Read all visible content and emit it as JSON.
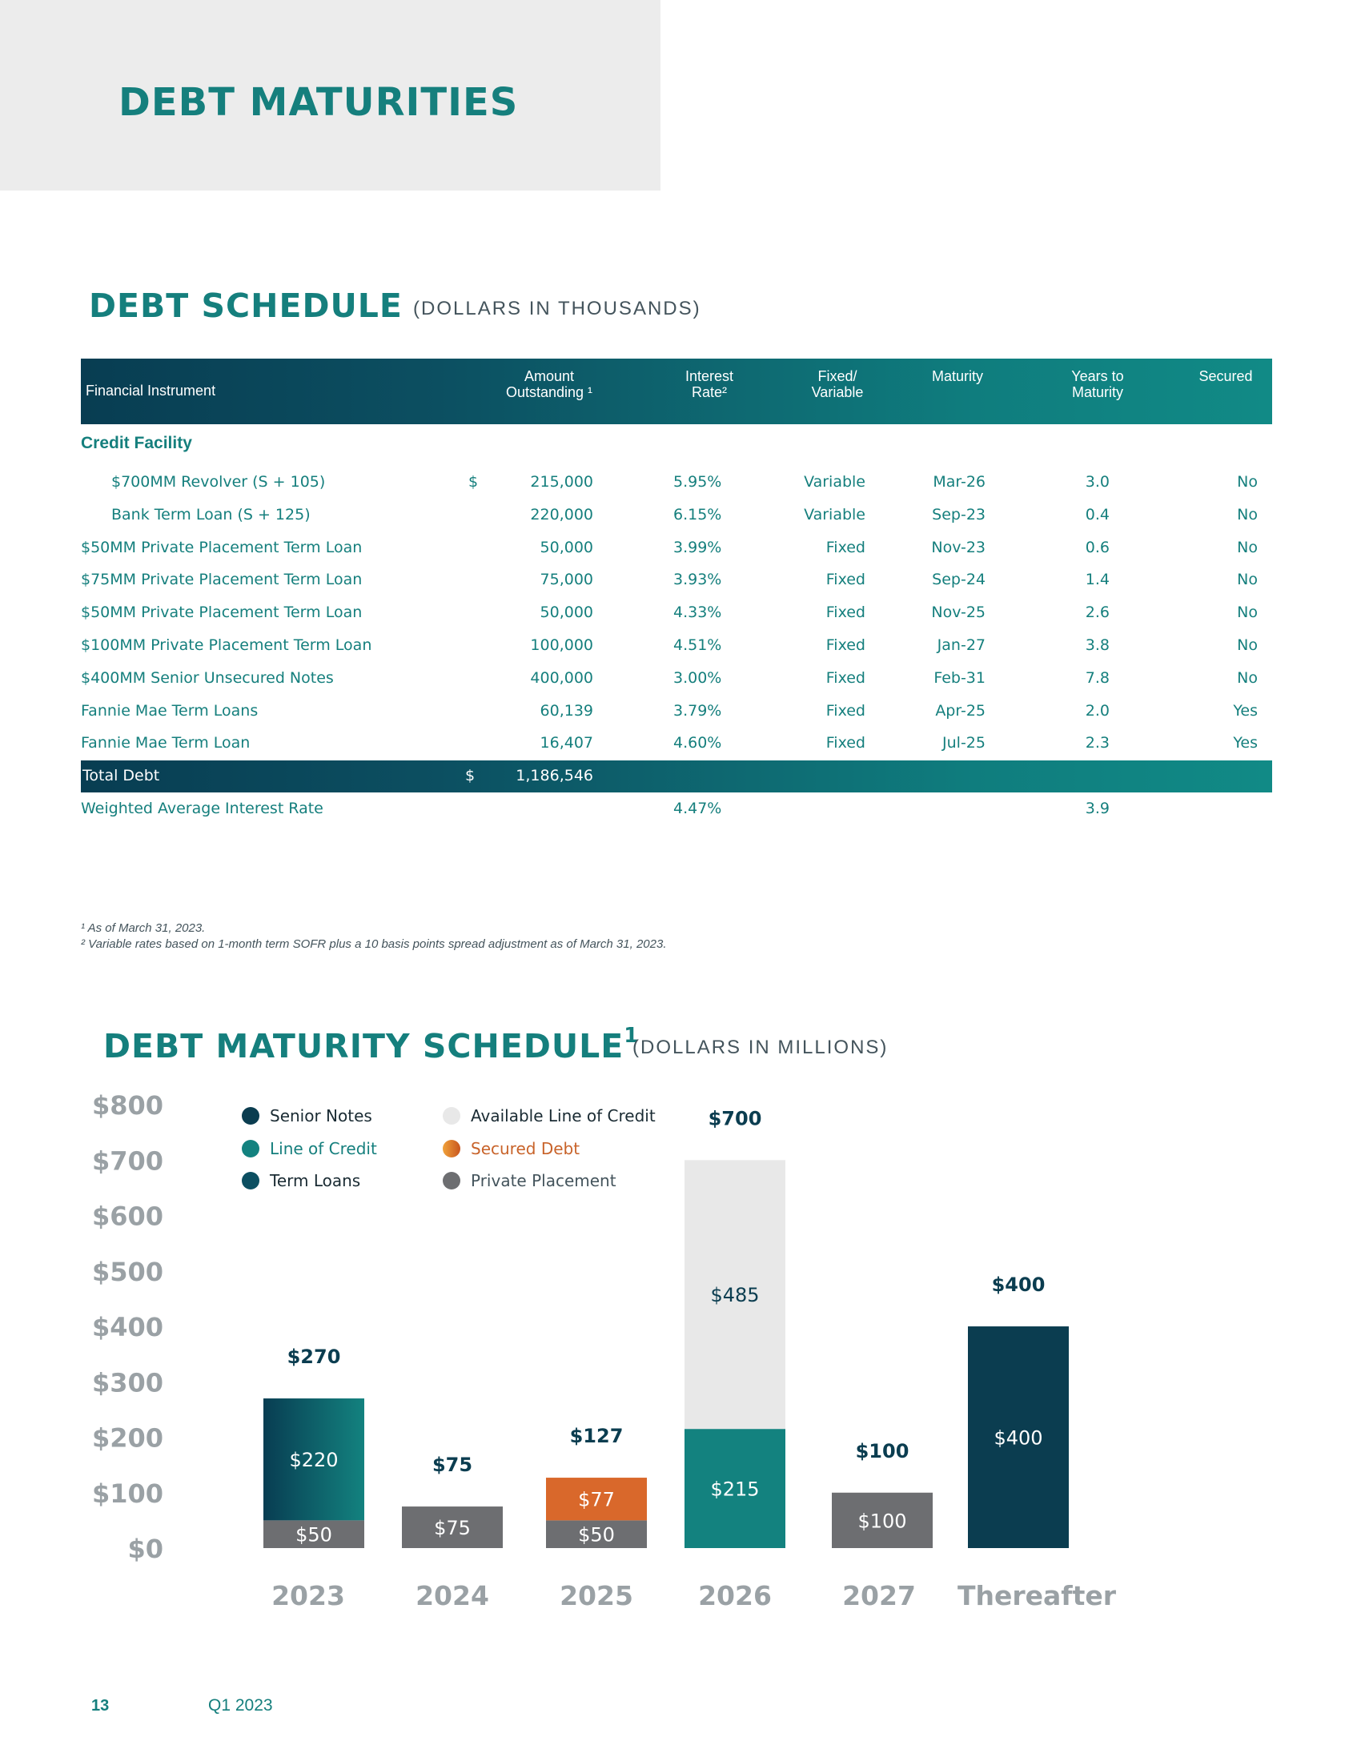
{
  "header": {
    "title": "DEBT MATURITIES"
  },
  "debt_schedule": {
    "title": "DEBT SCHEDULE",
    "subtitle": "(DOLLARS IN THOUSANDS)",
    "columns": {
      "instrument": "Financial Instrument",
      "amount_l1": "Amount",
      "amount_l2": "Outstanding ¹",
      "rate_l1": "Interest",
      "rate_l2": "Rate²",
      "fixed_l1": "Fixed/",
      "fixed_l2": "Variable",
      "maturity": "Maturity",
      "years_l1": "Years to",
      "years_l2": "Maturity",
      "secured": "Secured"
    },
    "category": "Credit Facility",
    "rows": [
      {
        "name": "$700MM Revolver (S + 105)",
        "dollar": "$",
        "amount": "215,000",
        "rate": "5.95%",
        "type": "Variable",
        "maturity": "Mar-26",
        "years": "3.0",
        "secured": "No"
      },
      {
        "name": "Bank Term Loan (S + 125)",
        "dollar": "",
        "amount": "220,000",
        "rate": "6.15%",
        "type": "Variable",
        "maturity": "Sep-23",
        "years": "0.4",
        "secured": "No"
      },
      {
        "name": "$50MM Private Placement Term Loan",
        "dollar": "",
        "amount": "50,000",
        "rate": "3.99%",
        "type": "Fixed",
        "maturity": "Nov-23",
        "years": "0.6",
        "secured": "No"
      },
      {
        "name": "$75MM Private Placement Term Loan",
        "dollar": "",
        "amount": "75,000",
        "rate": "3.93%",
        "type": "Fixed",
        "maturity": "Sep-24",
        "years": "1.4",
        "secured": "No"
      },
      {
        "name": "$50MM Private Placement Term Loan",
        "dollar": "",
        "amount": "50,000",
        "rate": "4.33%",
        "type": "Fixed",
        "maturity": "Nov-25",
        "years": "2.6",
        "secured": "No"
      },
      {
        "name": "$100MM Private Placement Term Loan",
        "dollar": "",
        "amount": "100,000",
        "rate": "4.51%",
        "type": "Fixed",
        "maturity": "Jan-27",
        "years": "3.8",
        "secured": "No"
      },
      {
        "name": "$400MM Senior Unsecured Notes",
        "dollar": "",
        "amount": "400,000",
        "rate": "3.00%",
        "type": "Fixed",
        "maturity": "Feb-31",
        "years": "7.8",
        "secured": "No"
      },
      {
        "name": "Fannie Mae Term Loans",
        "dollar": "",
        "amount": "60,139",
        "rate": "3.79%",
        "type": "Fixed",
        "maturity": "Apr-25",
        "years": "2.0",
        "secured": "Yes"
      },
      {
        "name": "Fannie Mae Term Loan",
        "dollar": "",
        "amount": "16,407",
        "rate": "4.60%",
        "type": "Fixed",
        "maturity": "Jul-25",
        "years": "2.3",
        "secured": "Yes"
      }
    ],
    "total": {
      "name": "Total Debt",
      "dollar": "$",
      "amount": "1,186,546"
    },
    "weighted": {
      "name": "Weighted Average Interest Rate",
      "rate": "4.47%",
      "years": "3.9"
    },
    "footnote1": "¹ As of March 31, 2023.",
    "footnote2": "² Variable rates based on 1-month term SOFR plus a 10 basis points spread adjustment as of March 31, 2023."
  },
  "maturity": {
    "title": "DEBT MATURITY SCHEDULE",
    "title_sup": "1",
    "subtitle": "(DOLLARS IN MILLIONS)"
  },
  "chart_data": {
    "type": "bar",
    "stacked": true,
    "categories": [
      "2023",
      "2024",
      "2025",
      "2026",
      "2027",
      "Thereafter"
    ],
    "y_ticks": [
      "$0",
      "$100",
      "$200",
      "$300",
      "$400",
      "$500",
      "$600",
      "$700",
      "$800"
    ],
    "ylim": [
      0,
      800
    ],
    "legend": [
      {
        "name": "Senior Notes",
        "color": "#0b3d50",
        "text_color": "#1a2b33"
      },
      {
        "name": "Line of Credit",
        "color": "#13827f",
        "text_color": "#157f7d"
      },
      {
        "name": "Term Loans",
        "color": "#0c4f61",
        "text_color": "#1a2b33"
      },
      {
        "name": "Available Line of Credit",
        "color": "#e8e8e8",
        "text_color": "#1a2b33"
      },
      {
        "name": "Secured Debt",
        "color": "#d9682b",
        "text_color": "#c8632a"
      },
      {
        "name": "Private Placement",
        "color": "#6d6e71",
        "text_color": "#44545c"
      }
    ],
    "bars": [
      {
        "category": "2023",
        "total": 270,
        "total_label": "$270",
        "segments": [
          {
            "series": "Private Placement",
            "value": 50,
            "label": "$50"
          },
          {
            "series": "Term Loans",
            "value": 220,
            "label": "$220"
          }
        ]
      },
      {
        "category": "2024",
        "total": 75,
        "total_label": "$75",
        "segments": [
          {
            "series": "Private Placement",
            "value": 75,
            "label": "$75"
          }
        ]
      },
      {
        "category": "2025",
        "total": 127,
        "total_label": "$127",
        "segments": [
          {
            "series": "Private Placement",
            "value": 50,
            "label": "$50"
          },
          {
            "series": "Secured Debt",
            "value": 77,
            "label": "$77"
          }
        ]
      },
      {
        "category": "2026",
        "total": 700,
        "total_label": "$700",
        "segments": [
          {
            "series": "Line of Credit",
            "value": 215,
            "label": "$215"
          },
          {
            "series": "Available Line of Credit",
            "value": 485,
            "label": "$485"
          }
        ]
      },
      {
        "category": "2027",
        "total": 100,
        "total_label": "$100",
        "segments": [
          {
            "series": "Private Placement",
            "value": 100,
            "label": "$100"
          }
        ]
      },
      {
        "category": "Thereafter",
        "total": 400,
        "total_label": "$400",
        "segments": [
          {
            "series": "Senior Notes",
            "value": 400,
            "label": "$400"
          }
        ]
      }
    ]
  },
  "footer": {
    "page": "13",
    "period": "Q1 2023"
  }
}
